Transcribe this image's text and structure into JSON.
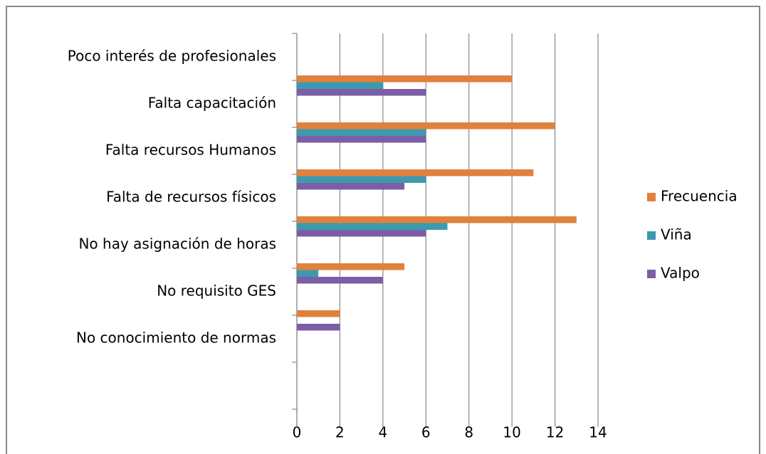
{
  "chart_data": {
    "type": "barh",
    "categories": [
      "Poco interés de profesionales",
      "Falta capacitación",
      "Falta recursos  Humanos",
      "Falta de recursos físicos",
      "No hay asignación de horas",
      "No requisito GES",
      "No conocimiento de normas",
      null
    ],
    "series": [
      {
        "name": "Frecuencia",
        "color": "#e0813d",
        "values": [
          0,
          10,
          12,
          11,
          13,
          5,
          2,
          null
        ]
      },
      {
        "name": "Viña",
        "color": "#3d9aae",
        "values": [
          0,
          4,
          6,
          6,
          7,
          1,
          0,
          null
        ]
      },
      {
        "name": "Valpo",
        "color": "#7b5ea6",
        "values": [
          0,
          6,
          6,
          5,
          6,
          4,
          2,
          null
        ]
      }
    ],
    "xlim": [
      0,
      14
    ],
    "xticks": [
      0,
      2,
      4,
      6,
      8,
      10,
      12,
      14
    ],
    "grid": true,
    "legend": "right"
  }
}
